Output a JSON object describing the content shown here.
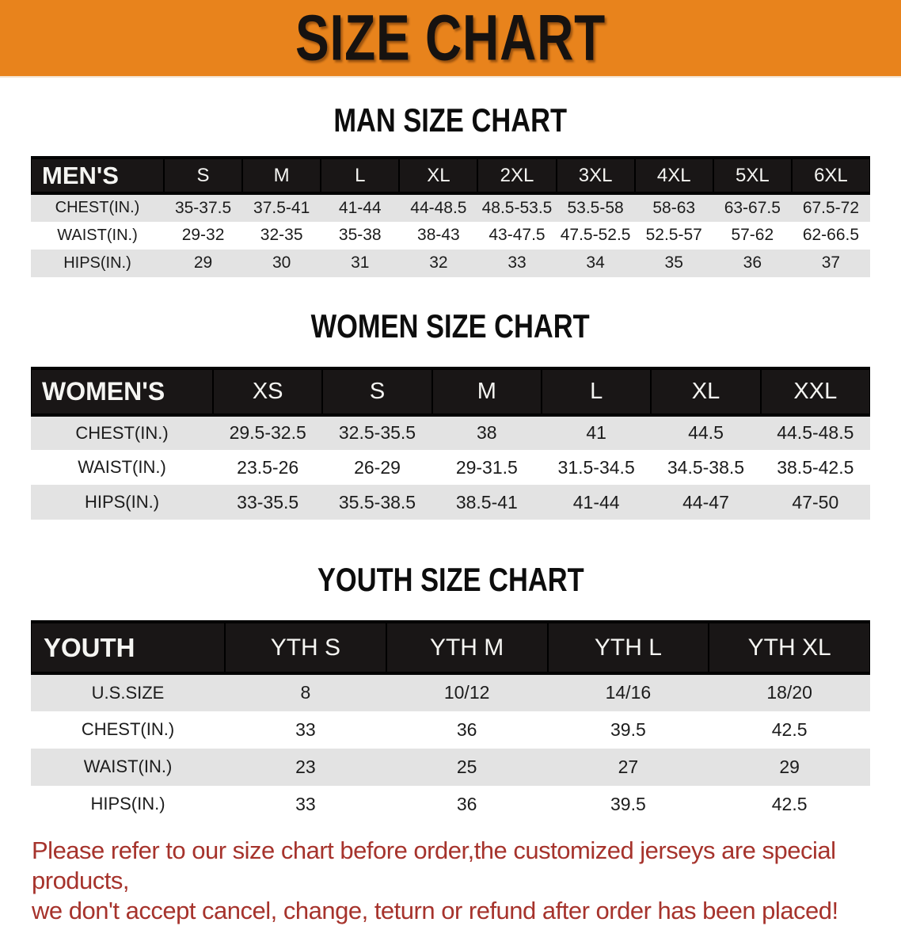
{
  "banner": {
    "title": "SIZE CHART",
    "bg_color": "#e8831c",
    "text_color": "#161210"
  },
  "sections": [
    {
      "heading": "MAN SIZE CHART"
    },
    {
      "heading": "WOMEN SIZE CHART"
    },
    {
      "heading": "YOUTH SIZE CHART"
    }
  ],
  "chart_data": [
    {
      "type": "table",
      "title": "MEN'S",
      "columns": [
        "S",
        "M",
        "L",
        "XL",
        "2XL",
        "3XL",
        "4XL",
        "5XL",
        "6XL"
      ],
      "rows": [
        {
          "label": "CHEST(IN.)",
          "values": [
            "35-37.5",
            "37.5-41",
            "41-44",
            "44-48.5",
            "48.5-53.5",
            "53.5-58",
            "58-63",
            "63-67.5",
            "67.5-72"
          ]
        },
        {
          "label": "WAIST(IN.)",
          "values": [
            "29-32",
            "32-35",
            "35-38",
            "38-43",
            "43-47.5",
            "47.5-52.5",
            "52.5-57",
            "57-62",
            "62-66.5"
          ]
        },
        {
          "label": "HIPS(IN.)",
          "values": [
            "29",
            "30",
            "31",
            "32",
            "33",
            "34",
            "35",
            "36",
            "37"
          ]
        }
      ]
    },
    {
      "type": "table",
      "title": "WOMEN'S",
      "columns": [
        "XS",
        "S",
        "M",
        "L",
        "XL",
        "XXL"
      ],
      "rows": [
        {
          "label": "CHEST(IN.)",
          "values": [
            "29.5-32.5",
            "32.5-35.5",
            "38",
            "41",
            "44.5",
            "44.5-48.5"
          ]
        },
        {
          "label": "WAIST(IN.)",
          "values": [
            "23.5-26",
            "26-29",
            "29-31.5",
            "31.5-34.5",
            "34.5-38.5",
            "38.5-42.5"
          ]
        },
        {
          "label": "HIPS(IN.)",
          "values": [
            "33-35.5",
            "35.5-38.5",
            "38.5-41",
            "41-44",
            "44-47",
            "47-50"
          ]
        }
      ]
    },
    {
      "type": "table",
      "title": "YOUTH",
      "columns": [
        "YTH S",
        "YTH M",
        "YTH L",
        "YTH XL"
      ],
      "rows": [
        {
          "label": "U.S.SIZE",
          "values": [
            "8",
            "10/12",
            "14/16",
            "18/20"
          ]
        },
        {
          "label": "CHEST(IN.)",
          "values": [
            "33",
            "36",
            "39.5",
            "42.5"
          ]
        },
        {
          "label": "WAIST(IN.)",
          "values": [
            "23",
            "25",
            "27",
            "29"
          ]
        },
        {
          "label": "HIPS(IN.)",
          "values": [
            "33",
            "36",
            "39.5",
            "42.5"
          ]
        }
      ]
    }
  ],
  "footer": {
    "line1": "Please refer to our size chart before order,the customized jerseys are special products,",
    "line2": "we don't accept cancel, change, teturn or refund after order has been placed!",
    "text_color": "#a6332c"
  }
}
